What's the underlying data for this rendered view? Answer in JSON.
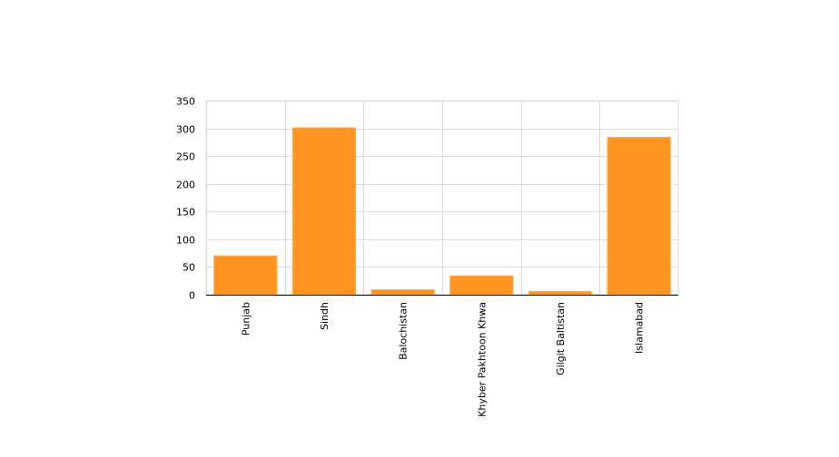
{
  "chart_data": {
    "type": "bar",
    "categories": [
      "Punjab",
      "Sindh",
      "Balochistan",
      "Khyber Pakhtoon Khwa",
      "Gilgit Baltistan",
      "Islamabad"
    ],
    "values": [
      70,
      301,
      9,
      34,
      6,
      284
    ],
    "title": "",
    "xlabel": "",
    "ylabel": "",
    "ylim": [
      0,
      350
    ],
    "yticks": [
      0,
      50,
      100,
      150,
      200,
      250,
      300,
      350
    ],
    "grid": true,
    "legend": "none",
    "bar_color": "#ff9421"
  }
}
